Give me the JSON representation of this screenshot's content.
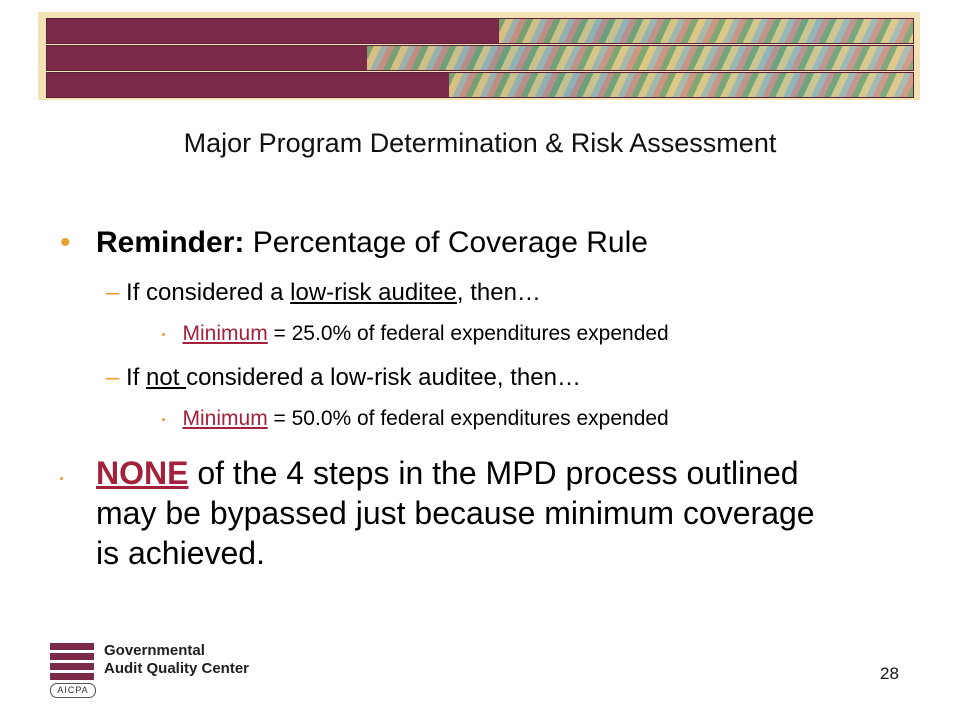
{
  "title": "Major Program Determination & Risk Assessment",
  "bullets": {
    "main1": {
      "label": "Reminder:",
      "text": " Percentage of Coverage Rule"
    },
    "sub1": {
      "prefix": "If considered a ",
      "underlined": "low-risk auditee",
      "suffix": ", then…"
    },
    "sub1_detail": {
      "underlined": "Minimum",
      "text": " = 25.0% of federal expenditures expended"
    },
    "sub2": {
      "prefix": "If ",
      "underlined": "not ",
      "suffix": "considered a low-risk auditee, then…"
    },
    "sub2_detail": {
      "underlined": "Minimum",
      "text": " = 50.0% of federal expenditures expended"
    },
    "main2": {
      "highlight": "NONE",
      "text": " of the 4 steps in the MPD process outlined may be bypassed just because minimum coverage is achieved."
    }
  },
  "footer": {
    "org_line1": "Governmental",
    "org_line2": "Audit Quality Center",
    "badge": "AICPA",
    "page_number": "28"
  },
  "colors": {
    "accent": "#e8a030",
    "brand": "#7a2a48",
    "highlight": "#a3213a"
  }
}
